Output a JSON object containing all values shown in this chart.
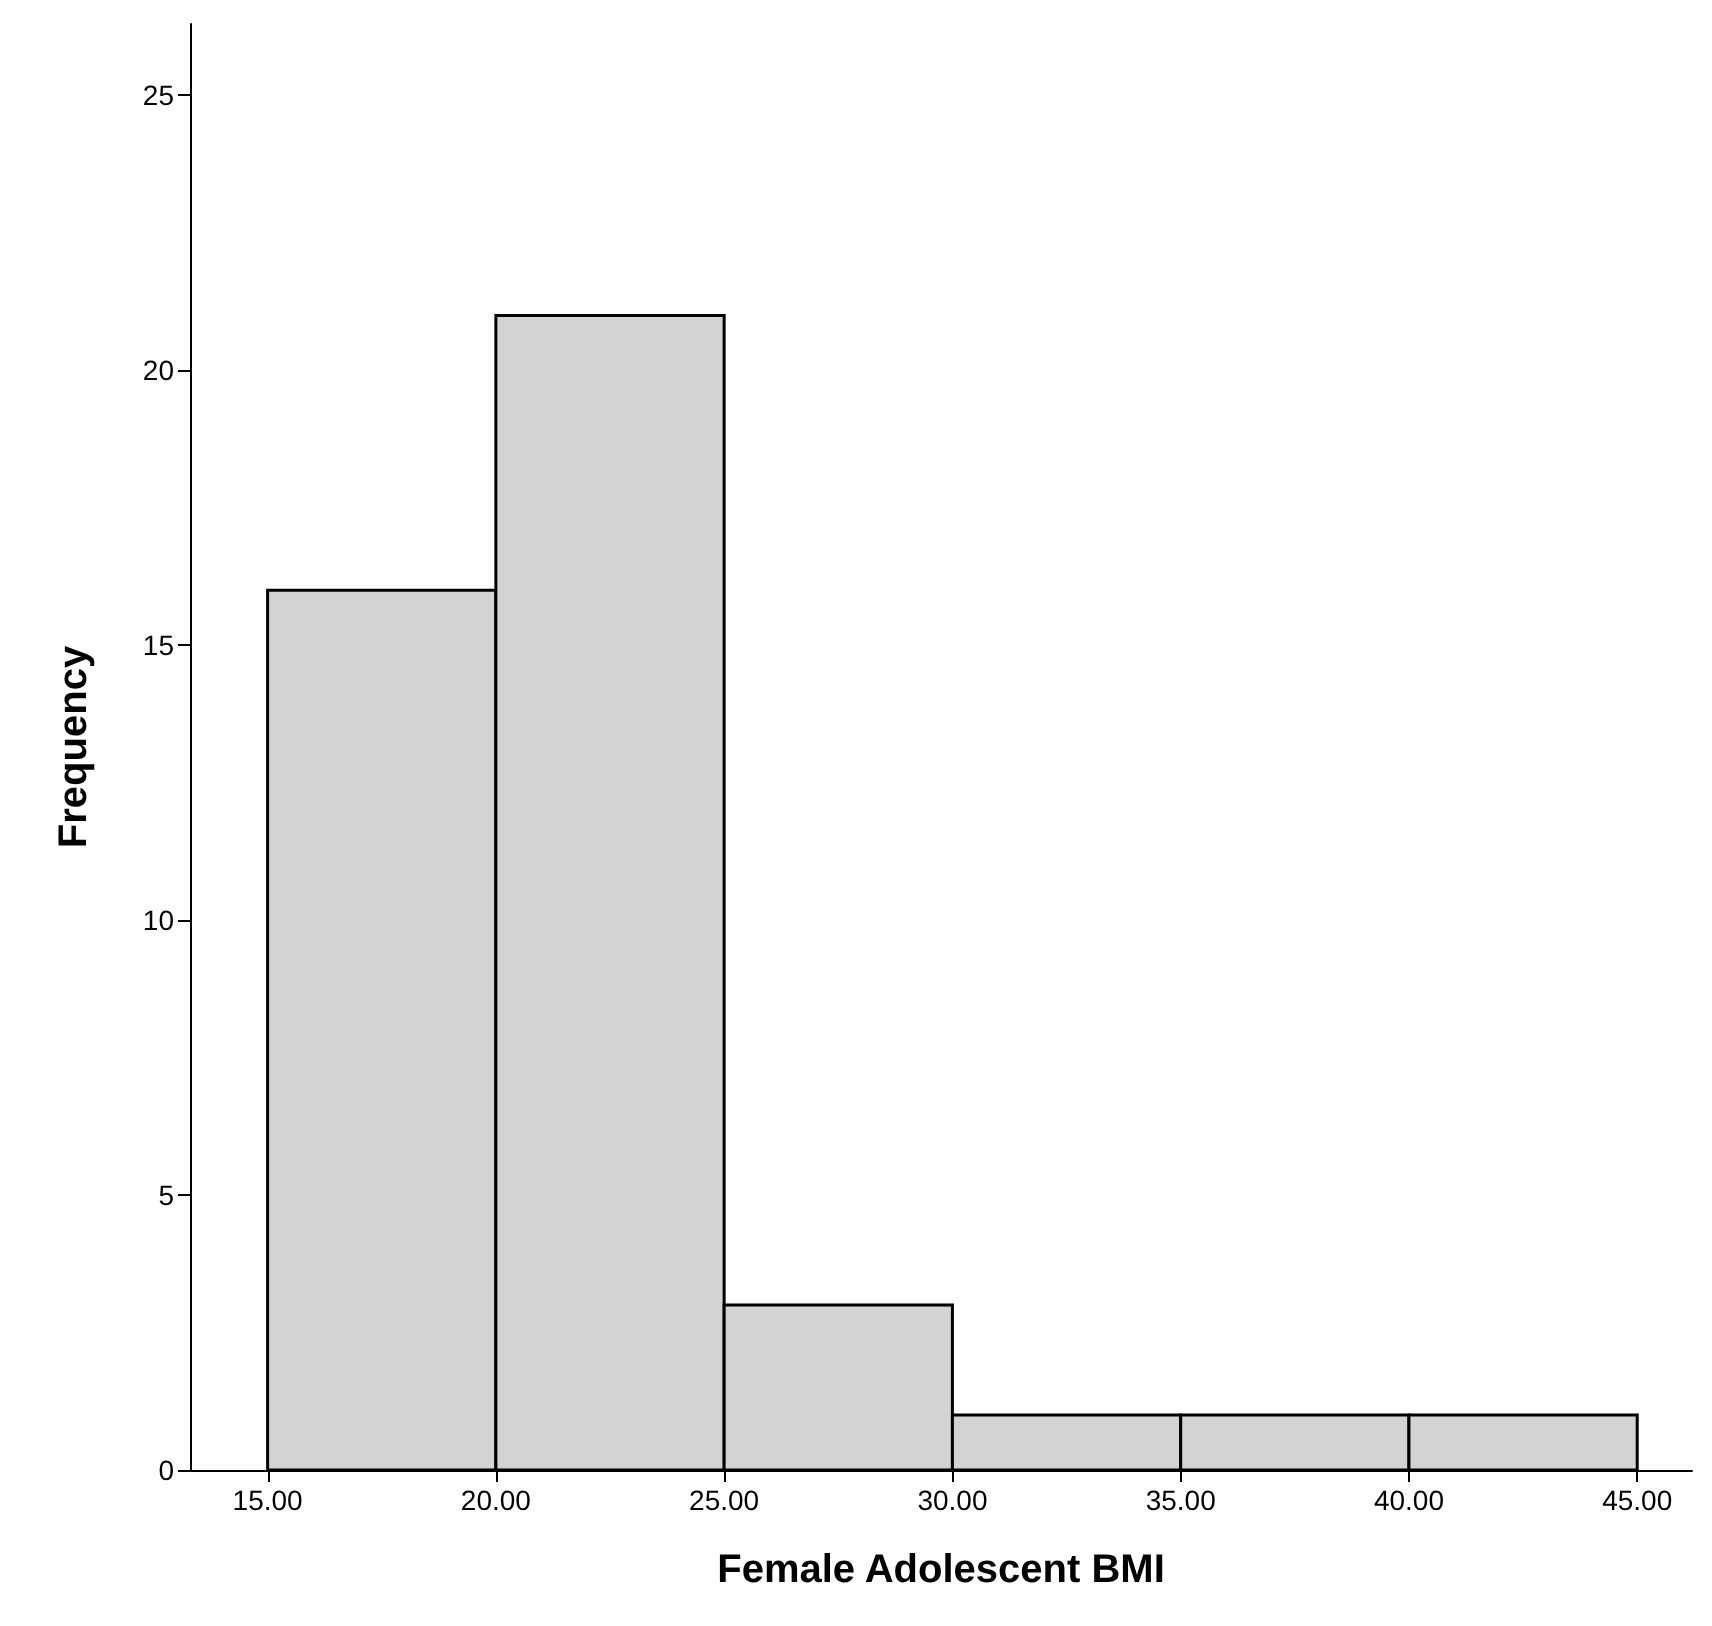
{
  "chart_data": {
    "type": "histogram",
    "xlabel": "Female Adolescent BMI",
    "ylabel": "Frequency",
    "bins": [
      15,
      20,
      25,
      30,
      35,
      40,
      45
    ],
    "values": [
      16,
      21,
      3,
      1,
      1,
      1
    ],
    "color": "#d3d3d3",
    "xlim": [
      13.3,
      46.2
    ],
    "ylim": [
      0,
      26.3
    ],
    "xticks": [
      {
        "value": 15,
        "label": "15.00"
      },
      {
        "value": 20,
        "label": "20.00"
      },
      {
        "value": 25,
        "label": "25.00"
      },
      {
        "value": 30,
        "label": "30.00"
      },
      {
        "value": 35,
        "label": "35.00"
      },
      {
        "value": 40,
        "label": "40.00"
      },
      {
        "value": 45,
        "label": "45.00"
      }
    ],
    "yticks": [
      0,
      5,
      10,
      15,
      20,
      25
    ],
    "grid": false
  }
}
